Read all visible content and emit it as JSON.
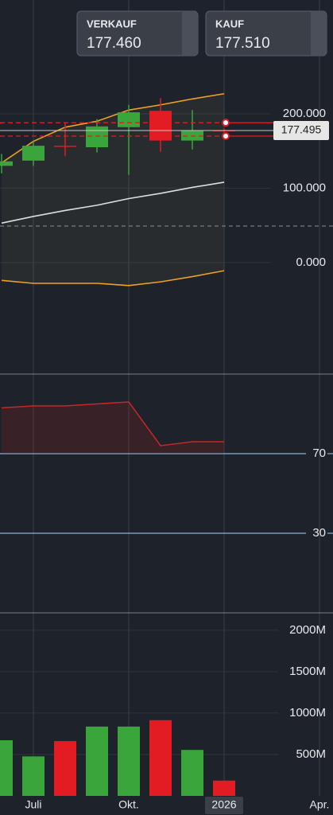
{
  "buttons": [
    {
      "label": "VERKAUF",
      "price": "177.460"
    },
    {
      "label": "KAUF",
      "price": "177.510"
    }
  ],
  "chart_data": [
    {
      "type": "candlestick",
      "open": [
        130,
        137,
        157,
        155,
        182,
        204,
        164,
        178,
        null,
        null,
        null
      ],
      "high": [
        146,
        163,
        187,
        193,
        212,
        221,
        205,
        180,
        null,
        null,
        null
      ],
      "low": [
        120,
        130,
        143,
        148,
        118,
        149,
        152,
        175,
        null,
        null,
        null
      ],
      "close": [
        136,
        157,
        157,
        183,
        202,
        164,
        178,
        177.495,
        null,
        null,
        null
      ],
      "up_color": "#3aa53a",
      "down_color": "#e31b23",
      "ylim": [
        -150,
        353
      ],
      "yticks": [
        {
          "value": 0,
          "label": "0.000"
        },
        {
          "value": 100,
          "label": "100.000"
        },
        {
          "value": 200,
          "label": "200.000"
        }
      ],
      "last_price": 177.495,
      "alert_levels": [
        188,
        170
      ],
      "alert_color": "#e31b23",
      "middle_level": 49,
      "overlays": [
        {
          "color": "#f0a020",
          "values": [
            134,
            163,
            182,
            190,
            205,
            212,
            220,
            227,
            null,
            null,
            null
          ]
        },
        {
          "color": "#dddddd",
          "values": [
            53,
            62,
            70,
            77,
            86,
            93,
            101,
            108,
            null,
            null,
            null
          ]
        },
        {
          "color": "#f0a020",
          "values": [
            -24,
            -28,
            -28,
            -28,
            -31,
            -26,
            -19,
            -11,
            null,
            null,
            null
          ]
        }
      ]
    },
    {
      "type": "line",
      "values": [
        93,
        94,
        94,
        95,
        96,
        74,
        76,
        76,
        null,
        null,
        null
      ],
      "color": "#c62828",
      "ylim": [
        -10,
        110
      ],
      "yticks": [
        30,
        70
      ]
    },
    {
      "type": "bar",
      "categories": [
        null,
        "Juli",
        null,
        null,
        "Okt.",
        null,
        null,
        "2026",
        null,
        null,
        "Apr."
      ],
      "values": [
        672,
        477,
        662,
        837,
        837,
        915,
        555,
        185,
        null,
        null,
        null
      ],
      "colors": [
        "#3aa53a",
        "#3aa53a",
        "#e31b23",
        "#3aa53a",
        "#3aa53a",
        "#e31b23",
        "#3aa53a",
        "#e31b23",
        null,
        null,
        null
      ],
      "ylim": [
        0,
        2210
      ],
      "yticks": [
        {
          "value": 500,
          "label": "500M"
        },
        {
          "value": 1000,
          "label": "1000M"
        },
        {
          "value": 1500,
          "label": "1500M"
        },
        {
          "value": 2000,
          "label": "2000M"
        }
      ]
    }
  ]
}
